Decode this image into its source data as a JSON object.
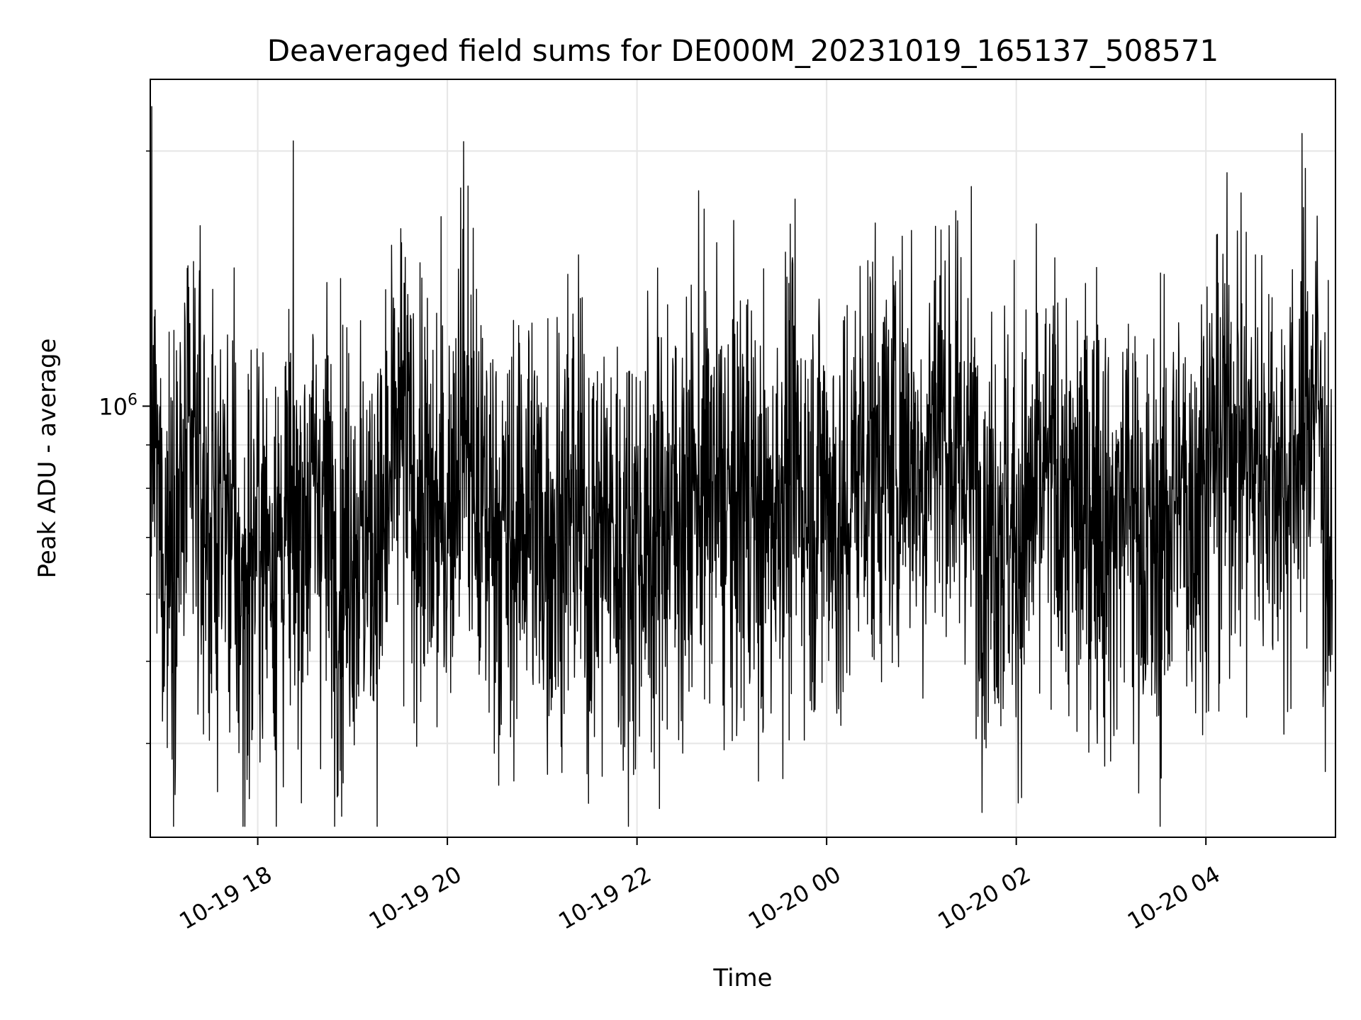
{
  "chart_data": {
    "type": "line",
    "title": "Deaveraged field sums for DE000M_20231019_165137_508571",
    "xlabel": "Time",
    "ylabel": "Peak ADU - average",
    "x_scale": "time",
    "y_scale": "log",
    "xlim": [
      "2023-10-19 16:52",
      "2023-10-20 05:22"
    ],
    "ylim": [
      310000,
      2430000
    ],
    "grid": true,
    "line_color": "#000000",
    "x_ticks": [
      "2023-10-19 18:00",
      "2023-10-19 20:00",
      "2023-10-19 22:00",
      "2023-10-20 00:00",
      "2023-10-20 02:00",
      "2023-10-20 04:00"
    ],
    "x_tick_labels": [
      "10-19 18",
      "10-19 20",
      "10-19 22",
      "10-20 00",
      "10-20 02",
      "10-20 04"
    ],
    "y_major_ticks": [
      1000000
    ],
    "y_major_tick_labels": [
      "10^6"
    ],
    "y_minor_ticks": [
      400000,
      500000,
      600000,
      700000,
      800000,
      900000,
      2000000
    ],
    "series": [
      {
        "name": "",
        "x": [
          "2023-10-19 16:52",
          "2023-10-19 17:00",
          "2023-10-19 17:10",
          "2023-10-19 17:20",
          "2023-10-19 17:30",
          "2023-10-19 17:40",
          "2023-10-19 17:50",
          "2023-10-19 18:00",
          "2023-10-19 18:10",
          "2023-10-19 18:20",
          "2023-10-19 18:30",
          "2023-10-19 18:40",
          "2023-10-19 18:50",
          "2023-10-19 19:00",
          "2023-10-19 19:10",
          "2023-10-19 19:20",
          "2023-10-19 19:30",
          "2023-10-19 19:40",
          "2023-10-19 19:50",
          "2023-10-19 20:00",
          "2023-10-19 20:10",
          "2023-10-19 20:20",
          "2023-10-19 20:30",
          "2023-10-19 20:40",
          "2023-10-19 20:50",
          "2023-10-19 21:00",
          "2023-10-19 21:10",
          "2023-10-19 21:20",
          "2023-10-19 21:30",
          "2023-10-19 21:40",
          "2023-10-19 21:50",
          "2023-10-19 22:00",
          "2023-10-19 22:10",
          "2023-10-19 22:20",
          "2023-10-19 22:30",
          "2023-10-19 22:40",
          "2023-10-19 22:50",
          "2023-10-19 23:00",
          "2023-10-19 23:10",
          "2023-10-19 23:20",
          "2023-10-19 23:30",
          "2023-10-19 23:40",
          "2023-10-19 23:50",
          "2023-10-20 00:00",
          "2023-10-20 00:10",
          "2023-10-20 00:20",
          "2023-10-20 00:30",
          "2023-10-20 00:40",
          "2023-10-20 00:50",
          "2023-10-20 01:00",
          "2023-10-20 01:10",
          "2023-10-20 01:20",
          "2023-10-20 01:30",
          "2023-10-20 01:40",
          "2023-10-20 01:50",
          "2023-10-20 02:00",
          "2023-10-20 02:10",
          "2023-10-20 02:20",
          "2023-10-20 02:30",
          "2023-10-20 02:40",
          "2023-10-20 02:50",
          "2023-10-20 03:00",
          "2023-10-20 03:10",
          "2023-10-20 03:20",
          "2023-10-20 03:30",
          "2023-10-20 03:40",
          "2023-10-20 03:50",
          "2023-10-20 04:00",
          "2023-10-20 04:10",
          "2023-10-20 04:20",
          "2023-10-20 04:30",
          "2023-10-20 04:40",
          "2023-10-20 04:50",
          "2023-10-20 05:00",
          "2023-10-20 05:10",
          "2023-10-20 05:20"
        ],
        "y": [
          1600000,
          520000,
          700000,
          1050000,
          600000,
          760000,
          330000,
          620000,
          540000,
          580000,
          720000,
          870000,
          460000,
          640000,
          540000,
          560000,
          1400000,
          800000,
          620000,
          680000,
          1850000,
          640000,
          700000,
          500000,
          800000,
          580000,
          620000,
          760000,
          520000,
          650000,
          470000,
          600000,
          540000,
          750000,
          680000,
          880000,
          820000,
          650000,
          900000,
          540000,
          850000,
          1000000,
          720000,
          920000,
          500000,
          1100000,
          1150000,
          1000000,
          1350000,
          880000,
          1750000,
          1100000,
          1050000,
          640000,
          720000,
          540000,
          700000,
          900000,
          780000,
          620000,
          820000,
          560000,
          880000,
          520000,
          480000,
          820000,
          740000,
          960000,
          1200000,
          1400000,
          980000,
          1100000,
          860000,
          1250000,
          2000000,
          340000
        ]
      }
    ]
  }
}
